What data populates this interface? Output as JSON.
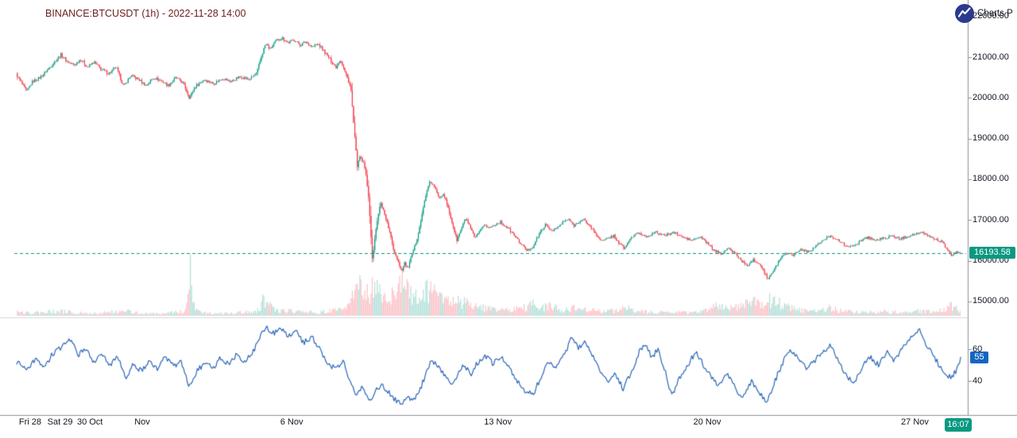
{
  "header": {
    "title": "BINANCE:BTCUSDT (1h) - 2022-11-28 14:00"
  },
  "attribution": {
    "text": "Charts P",
    "logo_icon": "chart-line-in-circle"
  },
  "badges": {
    "last_price": "16193.58",
    "rsi": "55",
    "time": "16:07"
  },
  "colors": {
    "up": "#089981",
    "down": "#f23645",
    "last_price_line": "#089981",
    "rsi_line": "#2a66b8",
    "rsi_badge": "#1565c0",
    "title": "#6b1d1d",
    "axis_text": "#131722",
    "axis_line": "#8f929a",
    "separator_line": "#d6d9de",
    "logo_bg": "#2a3b8f"
  },
  "price_axis": {
    "ticks": [
      {
        "label": "22000.00",
        "price": 22000
      },
      {
        "label": "21000.00",
        "price": 21000
      },
      {
        "label": "20000.00",
        "price": 20000
      },
      {
        "label": "19000.00",
        "price": 19000
      },
      {
        "label": "18000.00",
        "price": 18000
      },
      {
        "label": "17000.00",
        "price": 17000
      },
      {
        "label": "16000.00",
        "price": 16000
      },
      {
        "label": "15000.00",
        "price": 15000
      }
    ]
  },
  "time_axis": {
    "ticks": [
      {
        "label": "Fri 28",
        "day_offset": 0.45
      },
      {
        "label": "Sat 29",
        "day_offset": 1.45
      },
      {
        "label": "30 Oct",
        "day_offset": 2.45
      },
      {
        "label": "Nov",
        "day_offset": 4.2
      },
      {
        "label": "6 Nov",
        "day_offset": 9.2
      },
      {
        "label": "13 Nov",
        "day_offset": 16.1
      },
      {
        "label": "20 Nov",
        "day_offset": 23.1
      },
      {
        "label": "27 Nov",
        "day_offset": 30.05
      }
    ]
  },
  "rsi_axis": {
    "ticks": [
      {
        "label": "60",
        "value": 60
      },
      {
        "label": "40",
        "value": 40
      }
    ]
  },
  "chart_data": {
    "type": "candlestick",
    "symbol": "BINANCE:BTCUSDT",
    "interval": "1h",
    "title": "BINANCE:BTCUSDT (1h) - 2022-11-28 14:00",
    "last_price": 16193.58,
    "ylim": [
      14800,
      22150
    ],
    "x_span_days": 31.7,
    "legend_position": "none",
    "grid": false,
    "price_keyframes": [
      [
        0,
        20580
      ],
      [
        0.2,
        20350
      ],
      [
        0.35,
        20150
      ],
      [
        0.55,
        20400
      ],
      [
        0.8,
        20500
      ],
      [
        1,
        20650
      ],
      [
        1.25,
        20850
      ],
      [
        1.5,
        21060
      ],
      [
        1.7,
        20900
      ],
      [
        1.95,
        20800
      ],
      [
        2.15,
        20950
      ],
      [
        2.4,
        20750
      ],
      [
        2.6,
        20880
      ],
      [
        2.85,
        20700
      ],
      [
        3.1,
        20600
      ],
      [
        3.35,
        20750
      ],
      [
        3.6,
        20280
      ],
      [
        3.85,
        20550
      ],
      [
        4.1,
        20450
      ],
      [
        4.35,
        20300
      ],
      [
        4.6,
        20500
      ],
      [
        4.85,
        20420
      ],
      [
        5.1,
        20300
      ],
      [
        5.35,
        20500
      ],
      [
        5.6,
        20350
      ],
      [
        5.8,
        20000
      ],
      [
        6,
        20280
      ],
      [
        6.3,
        20450
      ],
      [
        6.6,
        20350
      ],
      [
        6.9,
        20480
      ],
      [
        7.2,
        20400
      ],
      [
        7.5,
        20520
      ],
      [
        7.8,
        20450
      ],
      [
        8.05,
        20600
      ],
      [
        8.2,
        21000
      ],
      [
        8.35,
        21330
      ],
      [
        8.5,
        21200
      ],
      [
        8.7,
        21400
      ],
      [
        8.9,
        21480
      ],
      [
        9.1,
        21350
      ],
      [
        9.3,
        21430
      ],
      [
        9.5,
        21300
      ],
      [
        9.7,
        21380
      ],
      [
        9.9,
        21250
      ],
      [
        10.1,
        21320
      ],
      [
        10.3,
        21150
      ],
      [
        10.5,
        20950
      ],
      [
        10.7,
        20750
      ],
      [
        10.85,
        20950
      ],
      [
        11.05,
        20550
      ],
      [
        11.2,
        20250
      ],
      [
        11.3,
        19300
      ],
      [
        11.42,
        18300
      ],
      [
        11.5,
        18550
      ],
      [
        11.62,
        18400
      ],
      [
        11.72,
        18100
      ],
      [
        11.82,
        17300
      ],
      [
        11.92,
        16000
      ],
      [
        12,
        16550
      ],
      [
        12.1,
        17050
      ],
      [
        12.2,
        17450
      ],
      [
        12.35,
        17100
      ],
      [
        12.5,
        16700
      ],
      [
        12.62,
        16300
      ],
      [
        12.75,
        16050
      ],
      [
        12.9,
        15750
      ],
      [
        13,
        15950
      ],
      [
        13.1,
        15800
      ],
      [
        13.25,
        16150
      ],
      [
        13.4,
        16500
      ],
      [
        13.55,
        17000
      ],
      [
        13.7,
        17600
      ],
      [
        13.85,
        17950
      ],
      [
        14,
        17800
      ],
      [
        14.15,
        17550
      ],
      [
        14.3,
        17650
      ],
      [
        14.45,
        17300
      ],
      [
        14.6,
        16900
      ],
      [
        14.75,
        16500
      ],
      [
        14.9,
        16800
      ],
      [
        15.05,
        17050
      ],
      [
        15.2,
        16800
      ],
      [
        15.35,
        16550
      ],
      [
        15.5,
        16700
      ],
      [
        15.65,
        16900
      ],
      [
        15.8,
        16800
      ],
      [
        16,
        16880
      ],
      [
        16.2,
        16950
      ],
      [
        16.45,
        16800
      ],
      [
        16.7,
        16600
      ],
      [
        16.9,
        16400
      ],
      [
        17.1,
        16250
      ],
      [
        17.3,
        16350
      ],
      [
        17.5,
        16650
      ],
      [
        17.7,
        16880
      ],
      [
        17.9,
        16750
      ],
      [
        18.1,
        16800
      ],
      [
        18.3,
        16950
      ],
      [
        18.5,
        17020
      ],
      [
        18.65,
        16850
      ],
      [
        18.8,
        16950
      ],
      [
        19,
        17000
      ],
      [
        19.2,
        16850
      ],
      [
        19.4,
        16650
      ],
      [
        19.6,
        16480
      ],
      [
        19.8,
        16550
      ],
      [
        20,
        16620
      ],
      [
        20.15,
        16450
      ],
      [
        20.35,
        16300
      ],
      [
        20.55,
        16550
      ],
      [
        20.8,
        16680
      ],
      [
        21.1,
        16600
      ],
      [
        21.4,
        16700
      ],
      [
        21.7,
        16620
      ],
      [
        22,
        16700
      ],
      [
        22.3,
        16580
      ],
      [
        22.6,
        16500
      ],
      [
        22.9,
        16580
      ],
      [
        23.1,
        16450
      ],
      [
        23.35,
        16250
      ],
      [
        23.6,
        16180
      ],
      [
        23.8,
        16300
      ],
      [
        24,
        16220
      ],
      [
        24.2,
        16050
      ],
      [
        24.45,
        15870
      ],
      [
        24.65,
        16020
      ],
      [
        24.85,
        15950
      ],
      [
        25,
        15780
      ],
      [
        25.15,
        15550
      ],
      [
        25.35,
        15750
      ],
      [
        25.55,
        16050
      ],
      [
        25.75,
        16200
      ],
      [
        26,
        16150
      ],
      [
        26.25,
        16280
      ],
      [
        26.5,
        16220
      ],
      [
        26.75,
        16350
      ],
      [
        27,
        16500
      ],
      [
        27.25,
        16620
      ],
      [
        27.5,
        16500
      ],
      [
        27.75,
        16380
      ],
      [
        28,
        16340
      ],
      [
        28.25,
        16500
      ],
      [
        28.5,
        16580
      ],
      [
        28.75,
        16500
      ],
      [
        29,
        16550
      ],
      [
        29.3,
        16600
      ],
      [
        29.6,
        16540
      ],
      [
        29.9,
        16620
      ],
      [
        30.1,
        16660
      ],
      [
        30.35,
        16680
      ],
      [
        30.6,
        16580
      ],
      [
        30.85,
        16500
      ],
      [
        31,
        16460
      ],
      [
        31.15,
        16250
      ],
      [
        31.3,
        16120
      ],
      [
        31.45,
        16230
      ],
      [
        31.58,
        16193.58
      ]
    ],
    "volume_rel_keyframes": [
      [
        0,
        0.07
      ],
      [
        0.5,
        0.06
      ],
      [
        1,
        0.08
      ],
      [
        1.5,
        0.1
      ],
      [
        2,
        0.06
      ],
      [
        2.5,
        0.05
      ],
      [
        3,
        0.07
      ],
      [
        3.6,
        0.1
      ],
      [
        4,
        0.06
      ],
      [
        4.5,
        0.05
      ],
      [
        5,
        0.06
      ],
      [
        5.6,
        0.08
      ],
      [
        5.72,
        0.35
      ],
      [
        5.78,
        1.0
      ],
      [
        5.85,
        0.3
      ],
      [
        6,
        0.1
      ],
      [
        6.3,
        0.06
      ],
      [
        7,
        0.05
      ],
      [
        7.5,
        0.07
      ],
      [
        8,
        0.08
      ],
      [
        8.2,
        0.3
      ],
      [
        8.4,
        0.2
      ],
      [
        8.7,
        0.12
      ],
      [
        9,
        0.1
      ],
      [
        9.5,
        0.08
      ],
      [
        10,
        0.07
      ],
      [
        10.5,
        0.1
      ],
      [
        11,
        0.12
      ],
      [
        11.25,
        0.6
      ],
      [
        11.45,
        0.65
      ],
      [
        11.6,
        0.4
      ],
      [
        11.8,
        0.5
      ],
      [
        11.95,
        0.68
      ],
      [
        12.1,
        0.5
      ],
      [
        12.3,
        0.45
      ],
      [
        12.5,
        0.4
      ],
      [
        12.7,
        0.55
      ],
      [
        12.9,
        0.65
      ],
      [
        13.1,
        0.5
      ],
      [
        13.3,
        0.4
      ],
      [
        13.6,
        0.5
      ],
      [
        13.85,
        0.55
      ],
      [
        14.1,
        0.35
      ],
      [
        14.4,
        0.3
      ],
      [
        14.7,
        0.3
      ],
      [
        15,
        0.25
      ],
      [
        15.3,
        0.2
      ],
      [
        15.7,
        0.15
      ],
      [
        16,
        0.12
      ],
      [
        16.5,
        0.1
      ],
      [
        17,
        0.18
      ],
      [
        17.2,
        0.25
      ],
      [
        17.5,
        0.15
      ],
      [
        17.8,
        0.2
      ],
      [
        18.2,
        0.12
      ],
      [
        18.6,
        0.15
      ],
      [
        19,
        0.12
      ],
      [
        19.5,
        0.1
      ],
      [
        20,
        0.1
      ],
      [
        20.4,
        0.15
      ],
      [
        21,
        0.08
      ],
      [
        21.5,
        0.07
      ],
      [
        22,
        0.08
      ],
      [
        22.5,
        0.06
      ],
      [
        23,
        0.1
      ],
      [
        23.4,
        0.22
      ],
      [
        23.8,
        0.15
      ],
      [
        24.2,
        0.2
      ],
      [
        24.5,
        0.3
      ],
      [
        24.9,
        0.2
      ],
      [
        25.15,
        0.32
      ],
      [
        25.5,
        0.25
      ],
      [
        25.9,
        0.18
      ],
      [
        26.3,
        0.12
      ],
      [
        26.8,
        0.1
      ],
      [
        27.2,
        0.15
      ],
      [
        27.6,
        0.1
      ],
      [
        28,
        0.08
      ],
      [
        28.5,
        0.07
      ],
      [
        29,
        0.08
      ],
      [
        29.5,
        0.07
      ],
      [
        30,
        0.1
      ],
      [
        30.5,
        0.08
      ],
      [
        31,
        0.12
      ],
      [
        31.2,
        0.25
      ],
      [
        31.45,
        0.12
      ],
      [
        31.58,
        0.1
      ]
    ],
    "lower_panel": {
      "type": "line",
      "name": "oscillator",
      "last_value": 55,
      "axis_ticks": [
        40,
        60
      ],
      "range": [
        20,
        80
      ]
    },
    "rsi_keyframes": [
      [
        0,
        52
      ],
      [
        0.37,
        47
      ],
      [
        0.64,
        54
      ],
      [
        0.9,
        48
      ],
      [
        1.17,
        56
      ],
      [
        1.52,
        62
      ],
      [
        1.78,
        67
      ],
      [
        2.05,
        56
      ],
      [
        2.31,
        60
      ],
      [
        2.58,
        52
      ],
      [
        2.85,
        58
      ],
      [
        3.11,
        50
      ],
      [
        3.38,
        56
      ],
      [
        3.64,
        42
      ],
      [
        3.9,
        50
      ],
      [
        4.18,
        46
      ],
      [
        4.44,
        53
      ],
      [
        4.71,
        47
      ],
      [
        4.97,
        55
      ],
      [
        5.24,
        49
      ],
      [
        5.5,
        53
      ],
      [
        5.77,
        36
      ],
      [
        6.04,
        46
      ],
      [
        6.3,
        52
      ],
      [
        6.57,
        48
      ],
      [
        6.84,
        55
      ],
      [
        7.1,
        50
      ],
      [
        7.37,
        57
      ],
      [
        7.63,
        52
      ],
      [
        7.9,
        58
      ],
      [
        8.16,
        68
      ],
      [
        8.35,
        74
      ],
      [
        8.62,
        70
      ],
      [
        8.8,
        75
      ],
      [
        9.07,
        68
      ],
      [
        9.34,
        72
      ],
      [
        9.6,
        64
      ],
      [
        9.87,
        68
      ],
      [
        10.13,
        60
      ],
      [
        10.4,
        52
      ],
      [
        10.66,
        47
      ],
      [
        10.93,
        52
      ],
      [
        11.14,
        40
      ],
      [
        11.36,
        30
      ],
      [
        11.57,
        36
      ],
      [
        11.78,
        27
      ],
      [
        12,
        33
      ],
      [
        12.21,
        38
      ],
      [
        12.42,
        33
      ],
      [
        12.63,
        29
      ],
      [
        12.85,
        25
      ],
      [
        13.06,
        30
      ],
      [
        13.27,
        27
      ],
      [
        13.48,
        34
      ],
      [
        13.7,
        45
      ],
      [
        13.9,
        53
      ],
      [
        14.12,
        49
      ],
      [
        14.33,
        43
      ],
      [
        14.55,
        37
      ],
      [
        14.76,
        44
      ],
      [
        14.97,
        50
      ],
      [
        15.19,
        44
      ],
      [
        15.4,
        51
      ],
      [
        15.66,
        56
      ],
      [
        15.93,
        51
      ],
      [
        16.2,
        56
      ],
      [
        16.46,
        48
      ],
      [
        16.73,
        40
      ],
      [
        17,
        34
      ],
      [
        17.26,
        31
      ],
      [
        17.53,
        42
      ],
      [
        17.8,
        52
      ],
      [
        18.06,
        49
      ],
      [
        18.32,
        56
      ],
      [
        18.59,
        68
      ],
      [
        18.8,
        61
      ],
      [
        19.02,
        65
      ],
      [
        19.23,
        57
      ],
      [
        19.5,
        47
      ],
      [
        19.76,
        40
      ],
      [
        20.03,
        45
      ],
      [
        20.29,
        35
      ],
      [
        20.56,
        45
      ],
      [
        20.82,
        58
      ],
      [
        21.04,
        63
      ],
      [
        21.25,
        55
      ],
      [
        21.46,
        60
      ],
      [
        21.68,
        47
      ],
      [
        21.91,
        30
      ],
      [
        22.18,
        42
      ],
      [
        22.45,
        50
      ],
      [
        22.71,
        58
      ],
      [
        22.98,
        50
      ],
      [
        23.24,
        42
      ],
      [
        23.51,
        37
      ],
      [
        23.78,
        45
      ],
      [
        24.04,
        35
      ],
      [
        24.31,
        29
      ],
      [
        24.57,
        40
      ],
      [
        24.84,
        33
      ],
      [
        25.11,
        27
      ],
      [
        25.37,
        40
      ],
      [
        25.64,
        52
      ],
      [
        25.9,
        60
      ],
      [
        26.17,
        54
      ],
      [
        26.44,
        47
      ],
      [
        26.7,
        53
      ],
      [
        26.97,
        58
      ],
      [
        27.23,
        63
      ],
      [
        27.5,
        52
      ],
      [
        27.77,
        43
      ],
      [
        28.03,
        39
      ],
      [
        28.3,
        50
      ],
      [
        28.56,
        55
      ],
      [
        28.83,
        50
      ],
      [
        29.1,
        58
      ],
      [
        29.36,
        52
      ],
      [
        29.63,
        61
      ],
      [
        29.89,
        67
      ],
      [
        30.21,
        72
      ],
      [
        30.48,
        61
      ],
      [
        30.74,
        54
      ],
      [
        31.01,
        44
      ],
      [
        31.28,
        42
      ],
      [
        31.54,
        50
      ],
      [
        31.7,
        55
      ]
    ]
  }
}
